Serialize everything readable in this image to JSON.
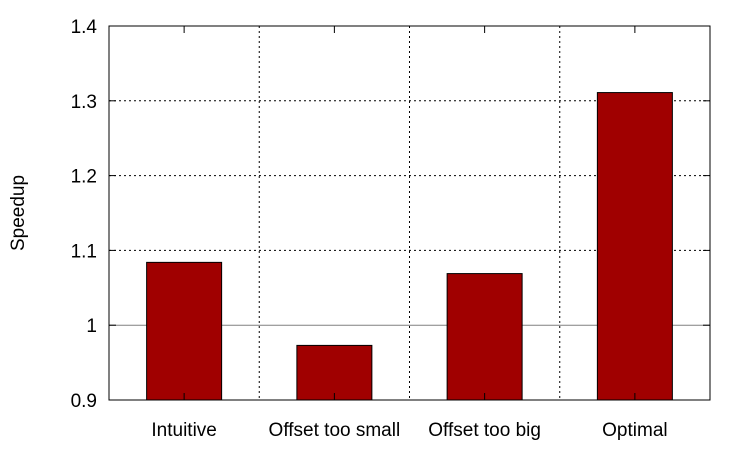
{
  "chart_data": {
    "type": "bar",
    "title": "",
    "xlabel": "",
    "ylabel": "Speedup",
    "categories": [
      "Intuitive",
      "Offset too small",
      "Offset too big",
      "Optimal"
    ],
    "values": [
      1.084,
      0.973,
      1.069,
      1.311
    ],
    "ylim": [
      0.9,
      1.4
    ],
    "yticks": [
      0.9,
      1,
      1.1,
      1.2,
      1.3,
      1.4
    ],
    "ytick_labels": [
      "0.9",
      "1",
      "1.1",
      "1.2",
      "1.3",
      "1.4"
    ],
    "baseline": 1,
    "grid": true,
    "grid_style": "dotted",
    "colors": {
      "bar": "#a00000",
      "bar_edge": "#000000",
      "grid": "#000000",
      "baseline": "#808080"
    }
  }
}
